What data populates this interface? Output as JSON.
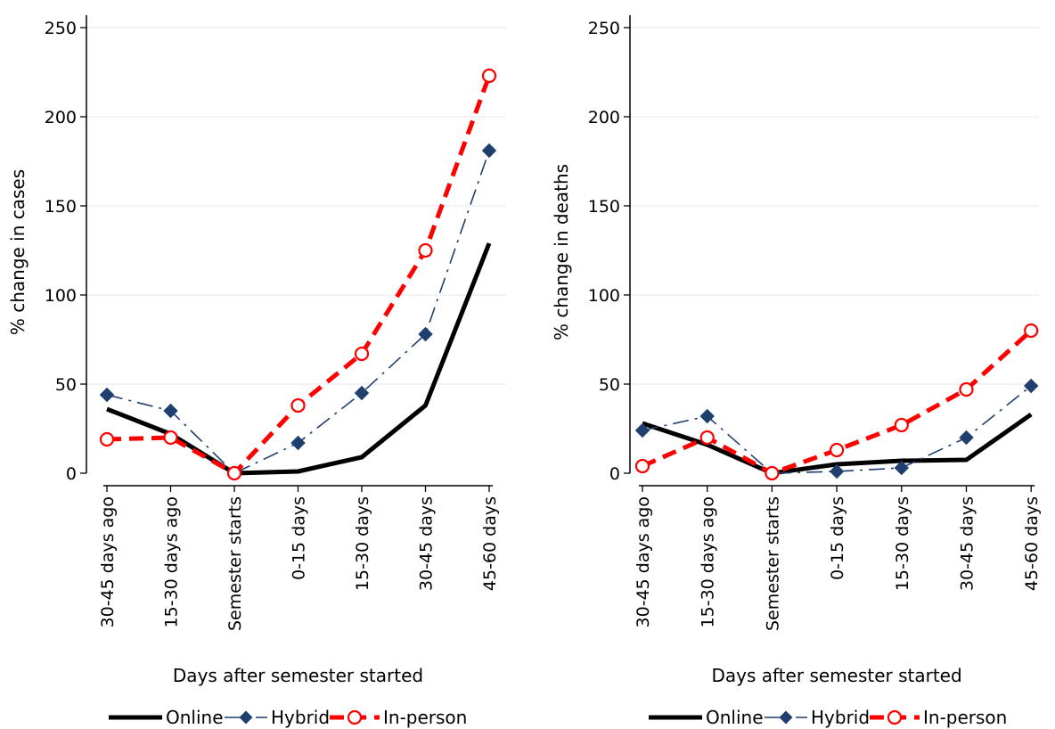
{
  "chart_data": [
    {
      "type": "line",
      "categories": [
        "30-45 days ago",
        "15-30 days ago",
        "Semester starts",
        "0-15 days",
        "15-30 days",
        "30-45 days",
        "45-60 days"
      ],
      "ylabel": "% change in cases",
      "xlabel": "Days after semester started",
      "ylim": [
        0,
        250
      ],
      "yticks": [
        0,
        50,
        100,
        150,
        200,
        250
      ],
      "grid": true,
      "legend_position": "bottom",
      "series": [
        {
          "name": "Online",
          "values": [
            36,
            22,
            0,
            1,
            9,
            38,
            129
          ],
          "color": "#000000",
          "style": "solid-thick",
          "marker": "none"
        },
        {
          "name": "Hybrid",
          "values": [
            44,
            35,
            0,
            17,
            45,
            78,
            181
          ],
          "color": "#1f3f6e",
          "style": "long-dash",
          "marker": "diamond"
        },
        {
          "name": "In-person",
          "values": [
            19,
            20,
            0,
            38,
            67,
            125,
            223
          ],
          "color": "#ff0000",
          "style": "dashed-thick",
          "marker": "hollow-circle"
        }
      ]
    },
    {
      "type": "line",
      "categories": [
        "30-45 days ago",
        "15-30 days ago",
        "Semester starts",
        "0-15 days",
        "15-30 days",
        "30-45 days",
        "45-60 days"
      ],
      "ylabel": "% change in deaths",
      "xlabel": "Days after semester started",
      "ylim": [
        0,
        250
      ],
      "yticks": [
        0,
        50,
        100,
        150,
        200,
        250
      ],
      "grid": true,
      "legend_position": "bottom",
      "series": [
        {
          "name": "Online",
          "values": [
            28,
            16,
            0,
            5,
            7,
            7.5,
            33
          ],
          "color": "#000000",
          "style": "solid-thick",
          "marker": "none"
        },
        {
          "name": "Hybrid",
          "values": [
            24,
            32,
            0,
            1,
            3,
            20,
            49
          ],
          "color": "#1f3f6e",
          "style": "long-dash",
          "marker": "diamond"
        },
        {
          "name": "In-person",
          "values": [
            4,
            20,
            0,
            13,
            27,
            47,
            80
          ],
          "color": "#ff0000",
          "style": "dashed-thick",
          "marker": "hollow-circle"
        }
      ]
    }
  ]
}
